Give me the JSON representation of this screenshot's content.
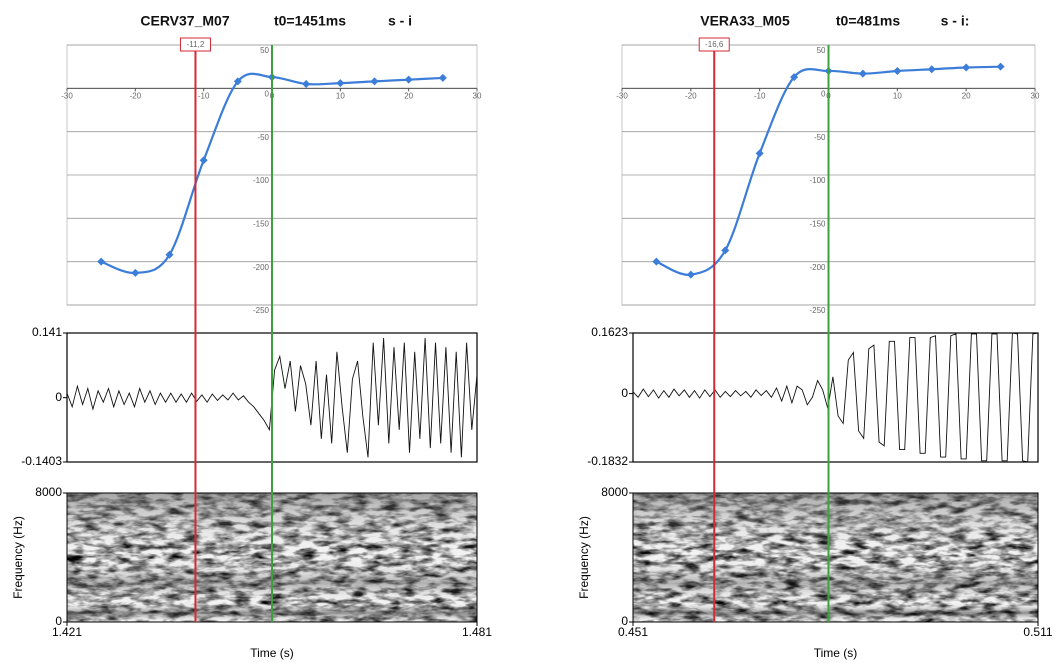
{
  "chart_data": [
    {
      "type": "line",
      "title": "CERV37_M07",
      "t0": "t0=1451ms",
      "label": "s - i",
      "color": "#3b7dd8",
      "x": [
        -25,
        -20,
        -15,
        -10,
        -5,
        0,
        5,
        10,
        15,
        20,
        25
      ],
      "values": [
        -200,
        -213,
        -192,
        -83,
        8,
        13,
        5,
        6,
        8,
        10,
        12
      ],
      "xlim": [
        -30,
        30
      ],
      "xticks": [
        -30,
        -20,
        -10,
        0,
        10,
        20,
        30
      ],
      "ylim": [
        -250,
        50
      ],
      "yticks": [
        -250,
        -200,
        -150,
        -100,
        -50,
        0,
        50
      ],
      "grid": true,
      "markers": [
        {
          "value": -11.2,
          "label": "-11,2",
          "color": "#d42a35"
        },
        {
          "value": 0,
          "color": "#3aa23a"
        }
      ],
      "waveform": {
        "ylim": [
          -0.1403,
          0.141
        ],
        "yticks": [
          -0.1403,
          0,
          0.141
        ],
        "values": [
          0.01,
          -0.02,
          0.025,
          -0.015,
          0.02,
          -0.025,
          0.015,
          -0.01,
          0.02,
          -0.02,
          0.015,
          -0.015,
          0.01,
          -0.02,
          0.02,
          -0.01,
          0.015,
          -0.015,
          0.01,
          -0.01,
          0.01,
          -0.01,
          0.008,
          -0.01,
          0.01,
          -0.008,
          0.006,
          -0.01,
          0.008,
          -0.006,
          0.006,
          -0.005,
          0.01,
          -0.005,
          0.004,
          -0.01,
          -0.02,
          -0.035,
          -0.05,
          -0.07,
          0.06,
          0.09,
          0.02,
          0.08,
          -0.03,
          0.07,
          0.03,
          -0.06,
          0.08,
          -0.09,
          0.05,
          -0.1,
          0.1,
          -0.02,
          -0.12,
          0.04,
          0.08,
          -0.04,
          -0.13,
          0.12,
          -0.06,
          0.13,
          -0.1,
          0.11,
          -0.07,
          0.12,
          -0.12,
          0.1,
          -0.09,
          0.13,
          -0.11,
          0.12,
          -0.1,
          0.11,
          -0.12,
          0.1,
          -0.13,
          0.12,
          -0.07,
          0.05
        ]
      },
      "spectrogram": {
        "ylabel": "Frequency (Hz)",
        "ylim": [
          0,
          8000
        ],
        "yticks": [
          0,
          8000
        ],
        "xlabel": "Time (s)",
        "xlim": [
          1.421,
          1.481
        ],
        "xticks": [
          1.421,
          1.481
        ]
      }
    },
    {
      "type": "line",
      "title": "VERA33_M05",
      "t0": "t0=481ms",
      "label": "s - i:",
      "color": "#3b7dd8",
      "x": [
        -25,
        -20,
        -15,
        -10,
        -5,
        0,
        5,
        10,
        15,
        20,
        25
      ],
      "values": [
        -200,
        -215,
        -187,
        -75,
        13,
        20,
        17,
        20,
        22,
        24,
        25
      ],
      "xlim": [
        -30,
        30
      ],
      "xticks": [
        -30,
        -20,
        -10,
        0,
        10,
        20,
        30
      ],
      "ylim": [
        -250,
        50
      ],
      "yticks": [
        -250,
        -200,
        -150,
        -100,
        -50,
        0,
        50
      ],
      "grid": true,
      "markers": [
        {
          "value": -16.6,
          "label": "-16,6",
          "color": "#d42a35"
        },
        {
          "value": 0,
          "color": "#3aa23a"
        }
      ],
      "waveform": {
        "ylim": [
          -0.1832,
          0.1623
        ],
        "yticks": [
          -0.1832,
          0,
          0.1623
        ],
        "values": [
          0.005,
          -0.01,
          0.012,
          -0.008,
          0.01,
          -0.012,
          0.008,
          -0.01,
          0.012,
          -0.006,
          0.01,
          -0.01,
          0.008,
          -0.012,
          0.01,
          -0.008,
          0.01,
          -0.01,
          0.006,
          -0.008,
          0.008,
          -0.006,
          0.006,
          -0.01,
          0.01,
          -0.005,
          0.008,
          -0.01,
          0.015,
          -0.02,
          0.02,
          -0.025,
          0.02,
          0.01,
          -0.03,
          -0.01,
          0.035,
          0.01,
          -0.04,
          0.045,
          -0.06,
          -0.08,
          0.09,
          0.11,
          -0.1,
          -0.12,
          0.12,
          0.13,
          -0.13,
          -0.14,
          0.14,
          0.14,
          -0.15,
          -0.15,
          0.15,
          0.15,
          -0.16,
          -0.16,
          0.15,
          0.155,
          -0.17,
          -0.17,
          0.155,
          0.16,
          -0.175,
          -0.175,
          0.16,
          0.16,
          -0.18,
          -0.18,
          0.16,
          0.16,
          -0.18,
          -0.18,
          0.162,
          0.16,
          -0.18,
          -0.183,
          0.16,
          0.162
        ]
      },
      "spectrogram": {
        "ylabel": "Frequency (Hz)",
        "ylim": [
          0,
          8000
        ],
        "yticks": [
          0,
          8000
        ],
        "xlabel": "Time (s)",
        "xlim": [
          0.451,
          0.511
        ],
        "xticks": [
          0.451,
          0.511
        ]
      }
    }
  ]
}
